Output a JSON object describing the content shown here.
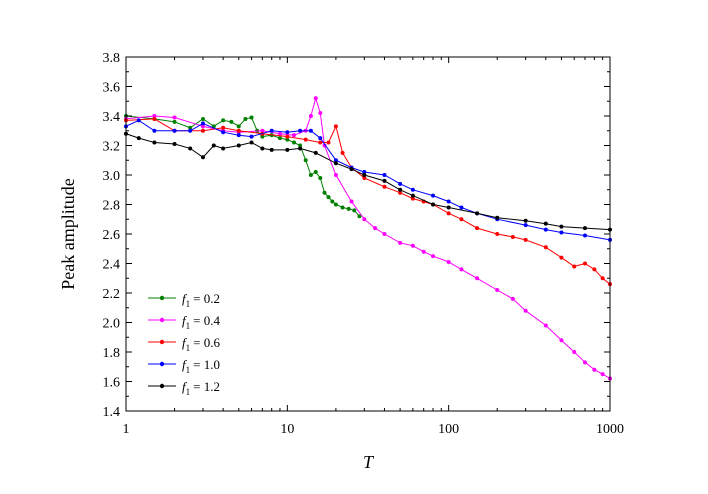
{
  "chart_data": {
    "type": "scatter",
    "title": "",
    "xlabel": "T",
    "ylabel": "Peak amplitude",
    "xscale": "log",
    "xlim": [
      1,
      1000
    ],
    "ylim": [
      1.4,
      3.8
    ],
    "x_ticks": [
      "1",
      "10",
      "100",
      "1000"
    ],
    "y_ticks": [
      "1.4",
      "1.6",
      "1.8",
      "2.0",
      "2.2",
      "2.4",
      "2.6",
      "2.8",
      "3.0",
      "3.2",
      "3.4",
      "3.6",
      "3.8"
    ],
    "grid": false,
    "legend_position": "bottom-left",
    "series": [
      {
        "name_symbol": "f",
        "name_sub": "1",
        "name_value": "= 0.2",
        "color": "#008000",
        "points": [
          [
            1,
            3.4
          ],
          [
            1.5,
            3.38
          ],
          [
            2,
            3.36
          ],
          [
            2.5,
            3.32
          ],
          [
            3,
            3.38
          ],
          [
            3.5,
            3.33
          ],
          [
            4,
            3.37
          ],
          [
            4.5,
            3.36
          ],
          [
            5,
            3.33
          ],
          [
            5.5,
            3.38
          ],
          [
            6,
            3.39
          ],
          [
            6.5,
            3.3
          ],
          [
            7,
            3.26
          ],
          [
            8,
            3.27
          ],
          [
            9,
            3.25
          ],
          [
            10,
            3.24
          ],
          [
            11,
            3.22
          ],
          [
            12,
            3.2
          ],
          [
            13,
            3.1
          ],
          [
            14,
            3.0
          ],
          [
            15,
            3.02
          ],
          [
            16,
            2.98
          ],
          [
            17,
            2.88
          ],
          [
            18,
            2.85
          ],
          [
            19,
            2.82
          ],
          [
            20,
            2.8
          ],
          [
            22,
            2.78
          ],
          [
            24,
            2.77
          ],
          [
            26,
            2.76
          ],
          [
            28,
            2.72
          ]
        ]
      },
      {
        "name_symbol": "f",
        "name_sub": "1",
        "name_value": "= 0.4",
        "color": "#ff00ff",
        "points": [
          [
            1,
            3.38
          ],
          [
            1.5,
            3.4
          ],
          [
            2,
            3.39
          ],
          [
            3,
            3.33
          ],
          [
            4,
            3.3
          ],
          [
            5,
            3.29
          ],
          [
            7,
            3.3
          ],
          [
            9,
            3.28
          ],
          [
            11,
            3.27
          ],
          [
            13,
            3.3
          ],
          [
            14,
            3.4
          ],
          [
            15,
            3.52
          ],
          [
            16,
            3.42
          ],
          [
            17,
            3.2
          ],
          [
            20,
            3.0
          ],
          [
            25,
            2.82
          ],
          [
            30,
            2.7
          ],
          [
            35,
            2.64
          ],
          [
            40,
            2.6
          ],
          [
            50,
            2.54
          ],
          [
            60,
            2.52
          ],
          [
            70,
            2.48
          ],
          [
            80,
            2.45
          ],
          [
            100,
            2.41
          ],
          [
            120,
            2.36
          ],
          [
            150,
            2.3
          ],
          [
            200,
            2.22
          ],
          [
            250,
            2.16
          ],
          [
            300,
            2.08
          ],
          [
            400,
            1.98
          ],
          [
            500,
            1.88
          ],
          [
            600,
            1.8
          ],
          [
            700,
            1.73
          ],
          [
            800,
            1.68
          ],
          [
            900,
            1.65
          ],
          [
            1000,
            1.62
          ]
        ]
      },
      {
        "name_symbol": "f",
        "name_sub": "1",
        "name_value": "= 0.6",
        "color": "#ff0000",
        "points": [
          [
            1,
            3.37
          ],
          [
            1.5,
            3.38
          ],
          [
            2,
            3.3
          ],
          [
            3,
            3.3
          ],
          [
            4,
            3.32
          ],
          [
            5,
            3.3
          ],
          [
            7,
            3.28
          ],
          [
            10,
            3.26
          ],
          [
            13,
            3.24
          ],
          [
            16,
            3.22
          ],
          [
            18,
            3.22
          ],
          [
            20,
            3.33
          ],
          [
            22,
            3.15
          ],
          [
            25,
            3.05
          ],
          [
            30,
            2.98
          ],
          [
            40,
            2.92
          ],
          [
            50,
            2.88
          ],
          [
            60,
            2.84
          ],
          [
            70,
            2.82
          ],
          [
            80,
            2.8
          ],
          [
            100,
            2.74
          ],
          [
            120,
            2.7
          ],
          [
            150,
            2.64
          ],
          [
            200,
            2.6
          ],
          [
            250,
            2.58
          ],
          [
            300,
            2.56
          ],
          [
            400,
            2.51
          ],
          [
            500,
            2.44
          ],
          [
            600,
            2.38
          ],
          [
            700,
            2.4
          ],
          [
            800,
            2.36
          ],
          [
            900,
            2.3
          ],
          [
            1000,
            2.26
          ]
        ]
      },
      {
        "name_symbol": "f",
        "name_sub": "1",
        "name_value": "= 1.0",
        "color": "#0000ff",
        "points": [
          [
            1,
            3.33
          ],
          [
            1.2,
            3.37
          ],
          [
            1.5,
            3.3
          ],
          [
            2,
            3.3
          ],
          [
            2.5,
            3.3
          ],
          [
            3,
            3.35
          ],
          [
            4,
            3.29
          ],
          [
            5,
            3.27
          ],
          [
            6,
            3.26
          ],
          [
            8,
            3.3
          ],
          [
            10,
            3.29
          ],
          [
            12,
            3.3
          ],
          [
            14,
            3.3
          ],
          [
            16,
            3.25
          ],
          [
            20,
            3.1
          ],
          [
            25,
            3.05
          ],
          [
            30,
            3.02
          ],
          [
            40,
            3.0
          ],
          [
            50,
            2.94
          ],
          [
            60,
            2.9
          ],
          [
            80,
            2.86
          ],
          [
            100,
            2.82
          ],
          [
            120,
            2.78
          ],
          [
            150,
            2.74
          ],
          [
            200,
            2.7
          ],
          [
            300,
            2.66
          ],
          [
            400,
            2.63
          ],
          [
            500,
            2.61
          ],
          [
            700,
            2.59
          ],
          [
            1000,
            2.56
          ]
        ]
      },
      {
        "name_symbol": "f",
        "name_sub": "1",
        "name_value": "= 1.2",
        "color": "#000000",
        "points": [
          [
            1,
            3.28
          ],
          [
            1.2,
            3.25
          ],
          [
            1.5,
            3.22
          ],
          [
            2,
            3.21
          ],
          [
            2.5,
            3.18
          ],
          [
            3,
            3.12
          ],
          [
            3.5,
            3.2
          ],
          [
            4,
            3.18
          ],
          [
            5,
            3.2
          ],
          [
            6,
            3.22
          ],
          [
            7,
            3.18
          ],
          [
            8,
            3.17
          ],
          [
            10,
            3.17
          ],
          [
            12,
            3.18
          ],
          [
            15,
            3.15
          ],
          [
            20,
            3.08
          ],
          [
            25,
            3.04
          ],
          [
            30,
            3.0
          ],
          [
            40,
            2.96
          ],
          [
            50,
            2.9
          ],
          [
            60,
            2.86
          ],
          [
            80,
            2.8
          ],
          [
            100,
            2.78
          ],
          [
            150,
            2.74
          ],
          [
            200,
            2.71
          ],
          [
            300,
            2.69
          ],
          [
            400,
            2.67
          ],
          [
            500,
            2.65
          ],
          [
            700,
            2.64
          ],
          [
            1000,
            2.63
          ]
        ]
      }
    ]
  }
}
